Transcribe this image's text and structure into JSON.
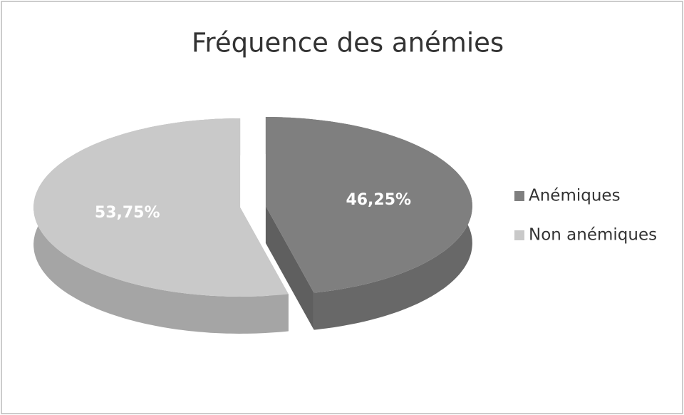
{
  "chart_data": {
    "type": "pie",
    "title": "Fréquence des anémies",
    "categories": [
      "Anémiques",
      "Non anémiques"
    ],
    "values": [
      46.25,
      53.75
    ],
    "value_labels": [
      "46,25%",
      "53,75%"
    ],
    "colors": [
      "#7f7f7f",
      "#c9c9c9"
    ],
    "legend": "right"
  }
}
